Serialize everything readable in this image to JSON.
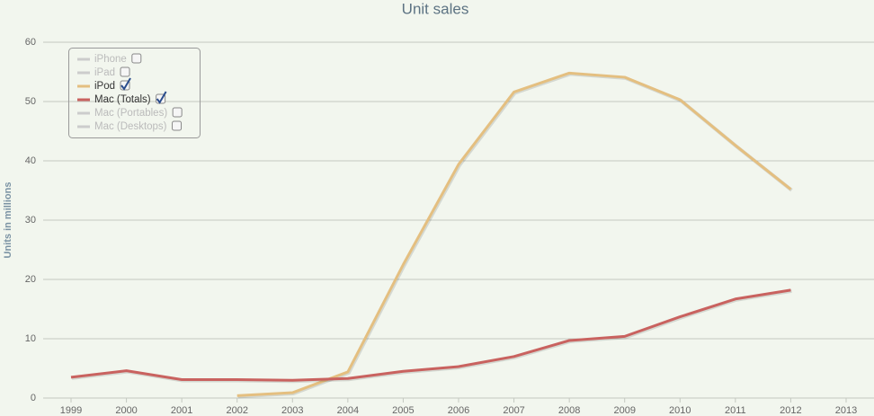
{
  "chart_data": {
    "type": "line",
    "title": "Unit sales",
    "y_label": "Units in millions",
    "x": [
      1999,
      2000,
      2001,
      2002,
      2003,
      2004,
      2005,
      2006,
      2007,
      2008,
      2009,
      2010,
      2011,
      2012
    ],
    "xlim": [
      1999,
      2013
    ],
    "xticks": [
      1999,
      2000,
      2001,
      2002,
      2003,
      2004,
      2005,
      2006,
      2007,
      2008,
      2009,
      2010,
      2011,
      2012,
      2013
    ],
    "ylim": [
      0,
      60
    ],
    "yticks": [
      0,
      10,
      20,
      30,
      40,
      50,
      60
    ],
    "grid": true,
    "legend": "top-left",
    "series": [
      {
        "name": "iPhone",
        "color": "#cccccc",
        "visible": false,
        "values": [
          null,
          null,
          null,
          null,
          null,
          null,
          null,
          null,
          null,
          null,
          null,
          null,
          null,
          null
        ]
      },
      {
        "name": "iPad",
        "color": "#cccccc",
        "visible": false,
        "values": [
          null,
          null,
          null,
          null,
          null,
          null,
          null,
          null,
          null,
          null,
          null,
          null,
          null,
          null
        ]
      },
      {
        "name": "iPod",
        "color": "#e4bf80",
        "visible": true,
        "values": [
          null,
          null,
          null,
          0.4,
          0.9,
          4.4,
          22.5,
          39.4,
          51.6,
          54.8,
          54.1,
          50.3,
          42.6,
          35.2
        ]
      },
      {
        "name": "Mac (Totals)",
        "color": "#c9625f",
        "visible": true,
        "values": [
          3.5,
          4.6,
          3.1,
          3.1,
          3.0,
          3.3,
          4.5,
          5.3,
          7.0,
          9.7,
          10.4,
          13.7,
          16.7,
          18.2
        ]
      },
      {
        "name": "Mac (Portables)",
        "color": "#cccccc",
        "visible": false,
        "values": [
          null,
          null,
          null,
          null,
          null,
          null,
          null,
          null,
          null,
          null,
          null,
          null,
          null,
          null
        ]
      },
      {
        "name": "Mac (Desktops)",
        "color": "#cccccc",
        "visible": false,
        "values": [
          null,
          null,
          null,
          null,
          null,
          null,
          null,
          null,
          null,
          null,
          null,
          null,
          null,
          null
        ]
      }
    ]
  }
}
